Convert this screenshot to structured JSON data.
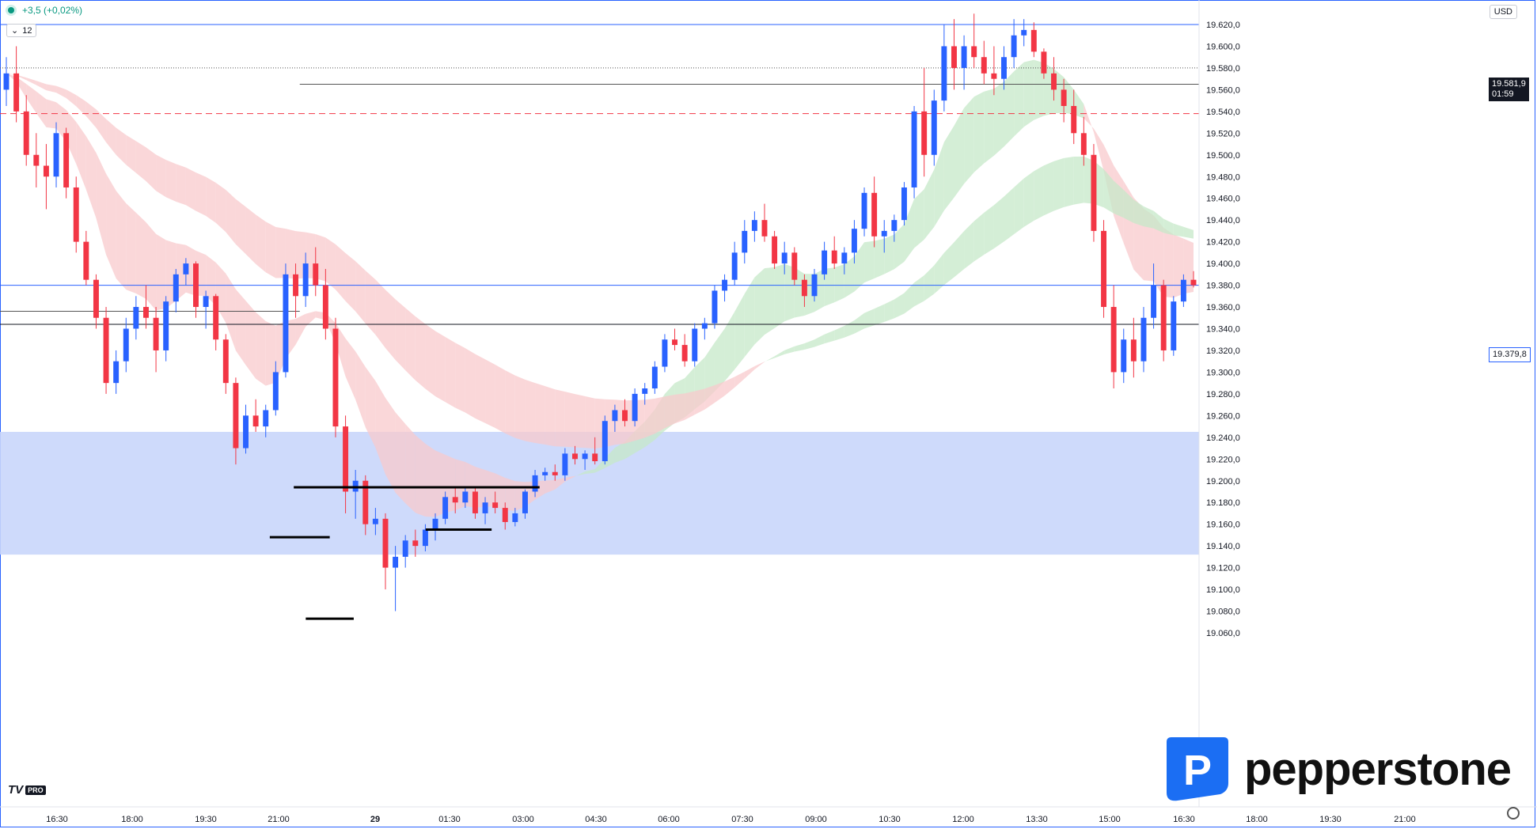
{
  "status": {
    "change": "+3,5 (+0,02%)"
  },
  "interval": {
    "label": "12"
  },
  "currency": "USD",
  "price_axis": {
    "ticks": [
      19620,
      19600,
      19580,
      19560,
      19540,
      19520,
      19500,
      19480,
      19460,
      19440,
      19420,
      19400,
      19380,
      19360,
      19340,
      19320,
      19300,
      19280,
      19260,
      19240,
      19220,
      19200,
      19180,
      19160,
      19140,
      19120,
      19100,
      19080,
      19060
    ],
    "tick_labels": [
      "19.620,0",
      "19.600,0",
      "19.580,0",
      "19.560,0",
      "19.540,0",
      "19.520,0",
      "19.500,0",
      "19.480,0",
      "19.460,0",
      "19.440,0",
      "19.420,0",
      "19.400,0",
      "19.380,0",
      "19.360,0",
      "19.340,0",
      "19.320,0",
      "19.300,0",
      "19.280,0",
      "19.260,0",
      "19.240,0",
      "19.220,0",
      "19.200,0",
      "19.180,0",
      "19.160,0",
      "19.140,0",
      "19.120,0",
      "19.100,0",
      "19.080,0",
      "19.060,0"
    ]
  },
  "current_price": {
    "value": "19.581,9",
    "countdown": "01:59"
  },
  "line_price_label": "19.379,8",
  "brand": {
    "name": "pepperstone",
    "logo_letter": "P"
  },
  "tv": {
    "mark": "TV",
    "badge": "PRO"
  },
  "colors": {
    "up": "#2962ff",
    "down": "#f23645",
    "zone": "#c9d6fb",
    "ribbon_red": "#f8c9cc",
    "ribbon_green": "#c5e8c8",
    "hline_blue": "#2962ff",
    "hline_red": "#f23645"
  },
  "chart_data": {
    "type": "candlestick",
    "title": "",
    "x_ticks": [
      "16:30",
      "18:00",
      "19:30",
      "21:00",
      "29",
      "01:30",
      "03:00",
      "04:30",
      "06:00",
      "07:30",
      "09:00",
      "10:30",
      "12:00",
      "13:30",
      "15:00",
      "16:30",
      "18:00",
      "19:30",
      "21:00"
    ],
    "ylim": [
      19050,
      19640
    ],
    "grid": false,
    "ohlc": [
      [
        19560,
        19590,
        19545,
        19575
      ],
      [
        19575,
        19600,
        19530,
        19540
      ],
      [
        19540,
        19555,
        19490,
        19500
      ],
      [
        19500,
        19520,
        19470,
        19490
      ],
      [
        19490,
        19510,
        19450,
        19480
      ],
      [
        19480,
        19530,
        19470,
        19520
      ],
      [
        19520,
        19525,
        19460,
        19470
      ],
      [
        19470,
        19480,
        19410,
        19420
      ],
      [
        19420,
        19430,
        19380,
        19385
      ],
      [
        19385,
        19390,
        19340,
        19350
      ],
      [
        19350,
        19360,
        19280,
        19290
      ],
      [
        19290,
        19320,
        19280,
        19310
      ],
      [
        19310,
        19350,
        19300,
        19340
      ],
      [
        19340,
        19370,
        19330,
        19360
      ],
      [
        19360,
        19380,
        19340,
        19350
      ],
      [
        19350,
        19360,
        19300,
        19320
      ],
      [
        19320,
        19370,
        19310,
        19365
      ],
      [
        19365,
        19395,
        19355,
        19390
      ],
      [
        19390,
        19405,
        19380,
        19400
      ],
      [
        19400,
        19402,
        19350,
        19360
      ],
      [
        19360,
        19375,
        19340,
        19370
      ],
      [
        19370,
        19372,
        19320,
        19330
      ],
      [
        19330,
        19335,
        19280,
        19290
      ],
      [
        19290,
        19295,
        19215,
        19230
      ],
      [
        19230,
        19270,
        19225,
        19260
      ],
      [
        19260,
        19275,
        19245,
        19250
      ],
      [
        19250,
        19270,
        19240,
        19265
      ],
      [
        19265,
        19310,
        19260,
        19300
      ],
      [
        19300,
        19400,
        19295,
        19390
      ],
      [
        19390,
        19400,
        19350,
        19370
      ],
      [
        19370,
        19410,
        19360,
        19400
      ],
      [
        19400,
        19415,
        19370,
        19380
      ],
      [
        19380,
        19395,
        19330,
        19340
      ],
      [
        19340,
        19350,
        19240,
        19250
      ],
      [
        19250,
        19260,
        19170,
        19190
      ],
      [
        19190,
        19210,
        19165,
        19200
      ],
      [
        19200,
        19205,
        19150,
        19160
      ],
      [
        19160,
        19175,
        19150,
        19165
      ],
      [
        19165,
        19170,
        19100,
        19120
      ],
      [
        19120,
        19140,
        19080,
        19130
      ],
      [
        19130,
        19150,
        19120,
        19145
      ],
      [
        19145,
        19155,
        19130,
        19140
      ],
      [
        19140,
        19160,
        19135,
        19155
      ],
      [
        19155,
        19170,
        19145,
        19165
      ],
      [
        19165,
        19190,
        19160,
        19185
      ],
      [
        19185,
        19195,
        19170,
        19180
      ],
      [
        19180,
        19193,
        19175,
        19190
      ],
      [
        19190,
        19195,
        19165,
        19170
      ],
      [
        19170,
        19185,
        19160,
        19180
      ],
      [
        19180,
        19190,
        19170,
        19175
      ],
      [
        19175,
        19180,
        19155,
        19162
      ],
      [
        19162,
        19175,
        19158,
        19170
      ],
      [
        19170,
        19192,
        19165,
        19190
      ],
      [
        19190,
        19210,
        19185,
        19205
      ],
      [
        19205,
        19212,
        19200,
        19208
      ],
      [
        19208,
        19215,
        19200,
        19205
      ],
      [
        19205,
        19230,
        19200,
        19225
      ],
      [
        19225,
        19232,
        19215,
        19220
      ],
      [
        19220,
        19228,
        19210,
        19225
      ],
      [
        19225,
        19240,
        19215,
        19218
      ],
      [
        19218,
        19260,
        19215,
        19255
      ],
      [
        19255,
        19270,
        19245,
        19265
      ],
      [
        19265,
        19275,
        19250,
        19255
      ],
      [
        19255,
        19285,
        19250,
        19280
      ],
      [
        19280,
        19290,
        19270,
        19285
      ],
      [
        19285,
        19310,
        19280,
        19305
      ],
      [
        19305,
        19335,
        19300,
        19330
      ],
      [
        19330,
        19340,
        19320,
        19325
      ],
      [
        19325,
        19335,
        19305,
        19310
      ],
      [
        19310,
        19345,
        19305,
        19340
      ],
      [
        19340,
        19350,
        19330,
        19345
      ],
      [
        19345,
        19380,
        19340,
        19375
      ],
      [
        19375,
        19390,
        19365,
        19385
      ],
      [
        19385,
        19420,
        19380,
        19410
      ],
      [
        19410,
        19440,
        19400,
        19430
      ],
      [
        19430,
        19448,
        19420,
        19440
      ],
      [
        19440,
        19455,
        19420,
        19425
      ],
      [
        19425,
        19430,
        19395,
        19400
      ],
      [
        19400,
        19420,
        19390,
        19410
      ],
      [
        19410,
        19415,
        19380,
        19385
      ],
      [
        19385,
        19390,
        19360,
        19370
      ],
      [
        19370,
        19395,
        19365,
        19390
      ],
      [
        19390,
        19420,
        19385,
        19412
      ],
      [
        19412,
        19425,
        19395,
        19400
      ],
      [
        19400,
        19415,
        19390,
        19410
      ],
      [
        19410,
        19440,
        19400,
        19432
      ],
      [
        19432,
        19470,
        19425,
        19465
      ],
      [
        19465,
        19480,
        19415,
        19425
      ],
      [
        19425,
        19440,
        19410,
        19430
      ],
      [
        19430,
        19445,
        19420,
        19440
      ],
      [
        19440,
        19475,
        19435,
        19470
      ],
      [
        19470,
        19545,
        19460,
        19540
      ],
      [
        19540,
        19580,
        19480,
        19500
      ],
      [
        19500,
        19560,
        19490,
        19550
      ],
      [
        19550,
        19620,
        19540,
        19600
      ],
      [
        19600,
        19625,
        19560,
        19580
      ],
      [
        19580,
        19610,
        19560,
        19600
      ],
      [
        19600,
        19630,
        19580,
        19590
      ],
      [
        19590,
        19605,
        19565,
        19575
      ],
      [
        19575,
        19600,
        19555,
        19570
      ],
      [
        19570,
        19600,
        19560,
        19590
      ],
      [
        19590,
        19625,
        19580,
        19610
      ],
      [
        19610,
        19625,
        19600,
        19615
      ],
      [
        19615,
        19622,
        19590,
        19595
      ],
      [
        19595,
        19598,
        19570,
        19575
      ],
      [
        19575,
        19590,
        19550,
        19560
      ],
      [
        19560,
        19570,
        19530,
        19545
      ],
      [
        19545,
        19560,
        19510,
        19520
      ],
      [
        19520,
        19535,
        19490,
        19500
      ],
      [
        19500,
        19510,
        19420,
        19430
      ],
      [
        19430,
        19440,
        19350,
        19360
      ],
      [
        19360,
        19380,
        19285,
        19300
      ],
      [
        19300,
        19340,
        19290,
        19330
      ],
      [
        19330,
        19350,
        19295,
        19310
      ],
      [
        19310,
        19360,
        19300,
        19350
      ],
      [
        19350,
        19400,
        19340,
        19380
      ],
      [
        19380,
        19385,
        19310,
        19320
      ],
      [
        19320,
        19370,
        19315,
        19365
      ],
      [
        19365,
        19390,
        19360,
        19385
      ],
      [
        19385,
        19393,
        19378,
        19380
      ]
    ],
    "horizontal_levels": [
      {
        "price": 19620,
        "style": "solid",
        "color": "#2962ff"
      },
      {
        "price": 19580,
        "style": "dotted",
        "color": "#555555"
      },
      {
        "price": 19565,
        "style": "solid",
        "color": "#555555",
        "start_fraction": 0.25
      },
      {
        "price": 19538,
        "style": "dashed",
        "color": "#f23645"
      },
      {
        "price": 19380,
        "style": "solid",
        "color": "#2962ff"
      },
      {
        "price": 19356,
        "style": "solid",
        "color": "#555555",
        "end_fraction": 0.25
      },
      {
        "price": 19344,
        "style": "solid",
        "color": "#131722"
      }
    ],
    "zone": {
      "top": 19245,
      "bottom": 19132
    },
    "support_lines": [
      {
        "price": 19194,
        "from_fraction": 0.245,
        "to_fraction": 0.45
      },
      {
        "price": 19148,
        "from_fraction": 0.225,
        "to_fraction": 0.275
      },
      {
        "price": 19155,
        "from_fraction": 0.355,
        "to_fraction": 0.41
      },
      {
        "price": 19073,
        "from_fraction": 0.255,
        "to_fraction": 0.295
      }
    ]
  }
}
